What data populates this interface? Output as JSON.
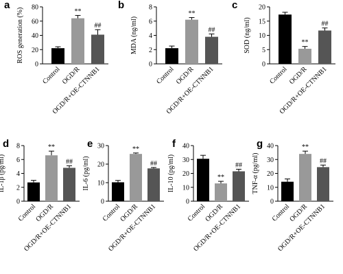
{
  "chart_data": [
    {
      "type": "bar",
      "panel": "a",
      "ylabel": "ROS generation (%)",
      "categories": [
        "Control",
        "OGD/R",
        "OGD/R+OE-CTNNB1"
      ],
      "values": [
        22,
        64,
        41
      ],
      "errors": [
        2,
        4,
        7
      ],
      "colors": [
        "#000000",
        "#999999",
        "#555555"
      ],
      "ylim": [
        0,
        80
      ],
      "yticks": [
        0,
        20,
        40,
        60,
        80
      ],
      "annotations": [
        {
          "category": "OGD/R",
          "text": "**"
        },
        {
          "category": "OGD/R+OE-CTNNB1",
          "text": "##"
        }
      ]
    },
    {
      "type": "bar",
      "panel": "b",
      "ylabel": "MDA (ng/ml)",
      "categories": [
        "Control",
        "OGD/R",
        "OGD/R+OE-CTNNB1"
      ],
      "values": [
        2.2,
        6.2,
        3.8
      ],
      "errors": [
        0.3,
        0.3,
        0.4
      ],
      "colors": [
        "#000000",
        "#999999",
        "#555555"
      ],
      "ylim": [
        0,
        8
      ],
      "yticks": [
        0,
        2,
        4,
        6,
        8
      ],
      "annotations": [
        {
          "category": "OGD/R",
          "text": "**"
        },
        {
          "category": "OGD/R+OE-CTNNB1",
          "text": "##"
        }
      ]
    },
    {
      "type": "bar",
      "panel": "c",
      "ylabel": "SOD (ng/ml)",
      "categories": [
        "Control",
        "OGD/R",
        "OGD/R+OE-CTNNB1"
      ],
      "values": [
        17.3,
        5.3,
        11.7
      ],
      "errors": [
        0.8,
        0.8,
        0.9
      ],
      "colors": [
        "#000000",
        "#999999",
        "#555555"
      ],
      "ylim": [
        0,
        20
      ],
      "yticks": [
        0,
        5,
        10,
        15,
        20
      ],
      "annotations": [
        {
          "category": "OGD/R",
          "text": "**"
        },
        {
          "category": "OGD/R+OE-CTNNB1",
          "text": "##"
        }
      ]
    },
    {
      "type": "bar",
      "panel": "d",
      "ylabel": "IL-1β (pg/ml)",
      "categories": [
        "Control",
        "OGD/R",
        "OGD/R+OE-CTNNB1"
      ],
      "values": [
        2.7,
        6.6,
        4.8
      ],
      "errors": [
        0.3,
        0.6,
        0.3
      ],
      "colors": [
        "#000000",
        "#999999",
        "#555555"
      ],
      "ylim": [
        0,
        8
      ],
      "yticks": [
        0,
        2,
        4,
        6,
        8
      ],
      "annotations": [
        {
          "category": "OGD/R",
          "text": "**"
        },
        {
          "category": "OGD/R+OE-CTNNB1",
          "text": "##"
        }
      ]
    },
    {
      "type": "bar",
      "panel": "e",
      "ylabel": "IL-6 (pg/ml)",
      "categories": [
        "Control",
        "OGD/R",
        "OGD/R+OE-CTNNB1"
      ],
      "values": [
        10.2,
        25.5,
        17.7
      ],
      "errors": [
        1,
        0.5,
        0.5
      ],
      "colors": [
        "#000000",
        "#999999",
        "#555555"
      ],
      "ylim": [
        0,
        30
      ],
      "yticks": [
        0,
        10,
        20,
        30
      ],
      "annotations": [
        {
          "category": "OGD/R",
          "text": "**"
        },
        {
          "category": "OGD/R+OE-CTNNB1",
          "text": "##"
        }
      ]
    },
    {
      "type": "bar",
      "panel": "f",
      "ylabel": "IL-10 (pg/ml)",
      "categories": [
        "Control",
        "OGD/R",
        "OGD/R+OE-CTNNB1"
      ],
      "values": [
        30.5,
        12.8,
        21.5
      ],
      "errors": [
        2.5,
        1.5,
        1.5
      ],
      "colors": [
        "#000000",
        "#999999",
        "#555555"
      ],
      "ylim": [
        0,
        40
      ],
      "yticks": [
        0,
        10,
        20,
        30,
        40
      ],
      "annotations": [
        {
          "category": "OGD/R",
          "text": "**"
        },
        {
          "category": "OGD/R+OE-CTNNB1",
          "text": "##"
        }
      ]
    },
    {
      "type": "bar",
      "panel": "g",
      "ylabel": "TNF-α (pg/ml)",
      "categories": [
        "Control",
        "OGD/R",
        "OGD/R+OE-CTNNB1"
      ],
      "values": [
        14,
        34,
        24.5
      ],
      "errors": [
        2,
        2,
        1.5
      ],
      "colors": [
        "#000000",
        "#999999",
        "#555555"
      ],
      "ylim": [
        0,
        40
      ],
      "yticks": [
        0,
        10,
        20,
        30,
        40
      ],
      "annotations": [
        {
          "category": "OGD/R",
          "text": "**"
        },
        {
          "category": "OGD/R+OE-CTNNB1",
          "text": "##"
        }
      ]
    }
  ]
}
